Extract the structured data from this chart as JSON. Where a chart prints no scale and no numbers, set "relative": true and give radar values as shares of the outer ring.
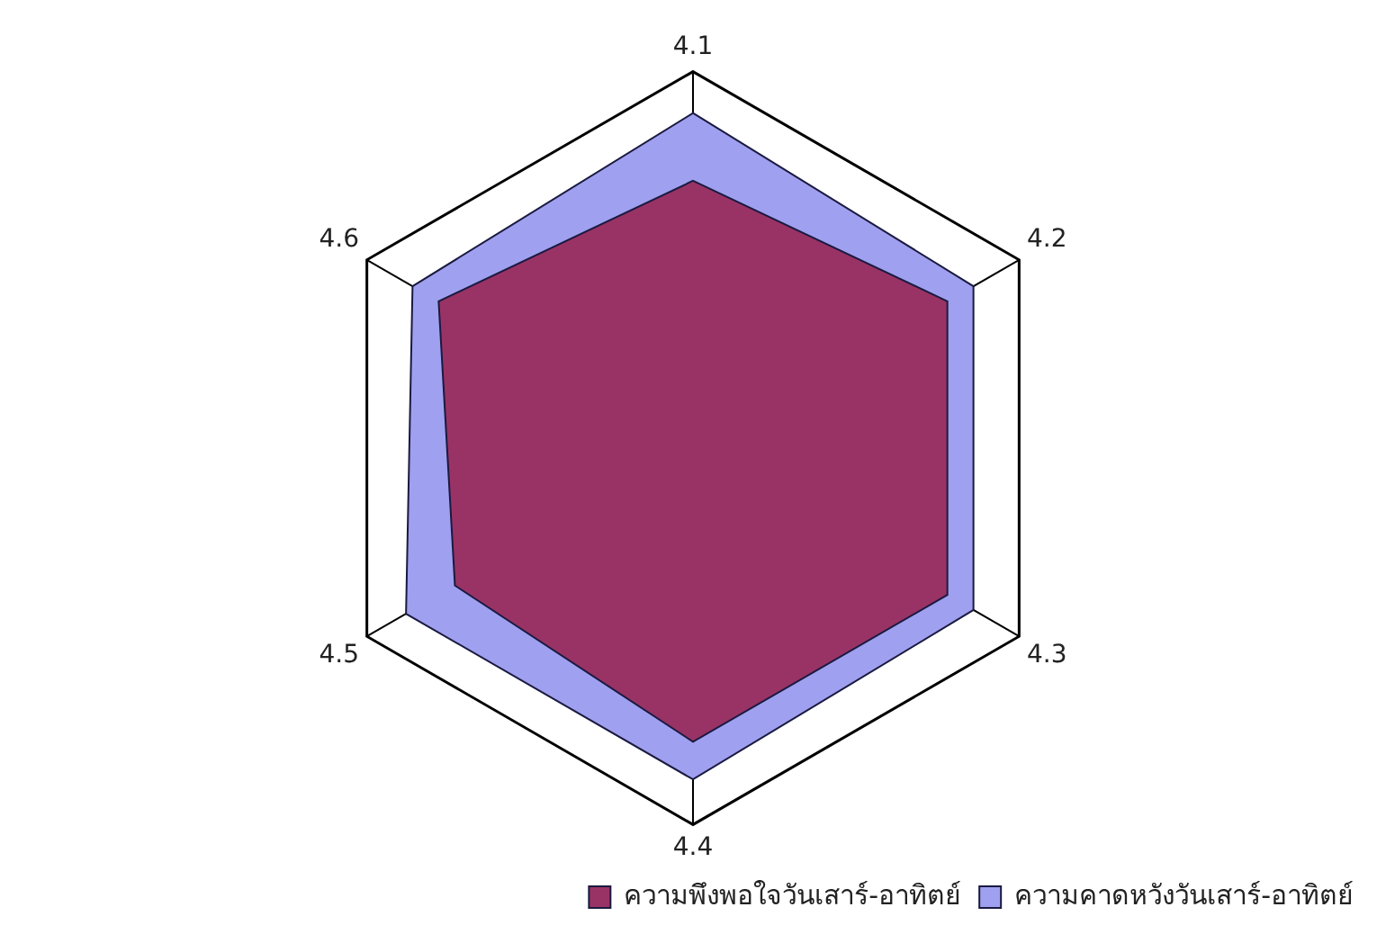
{
  "chart_data": {
    "type": "radar",
    "categories": [
      "4.1",
      "4.2",
      "4.3",
      "4.4",
      "4.5",
      "4.6"
    ],
    "relative": true,
    "grid": true,
    "legend": "bottom right",
    "series": [
      {
        "name": "ความคาดหวังวันเสาร์-อาทิตย์",
        "color": "#a0a0f0",
        "values": [
          0.89,
          0.86,
          0.86,
          0.88,
          0.88,
          0.86
        ]
      },
      {
        "name": "ความพึงพอใจวันเสาร์-อาทิตย์",
        "color": "#993366",
        "values": [
          0.71,
          0.78,
          0.78,
          0.78,
          0.73,
          0.78
        ]
      }
    ]
  }
}
